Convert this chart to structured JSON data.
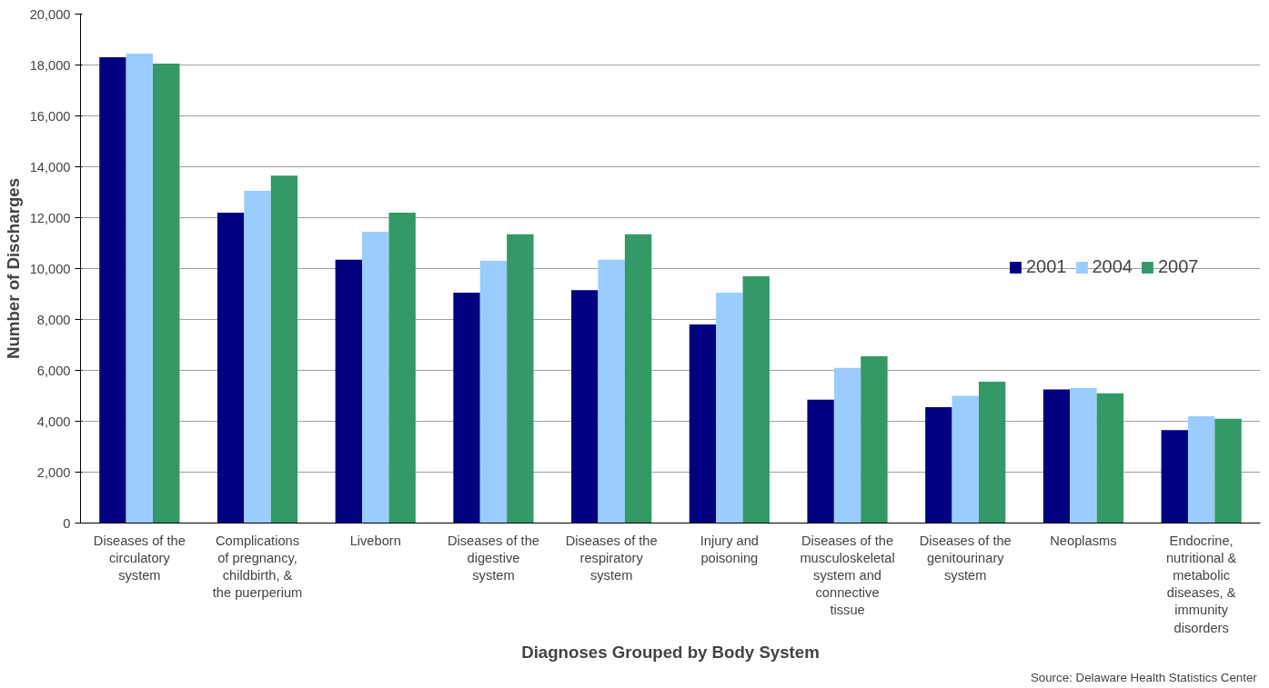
{
  "chart_data": {
    "type": "bar",
    "xlabel": "Diagnoses Grouped by Body System",
    "ylabel": "Number of Discharges",
    "categories": [
      "Diseases of the circulatory system",
      "Complications of pregnancy, childbirth, & the puerperium",
      "Liveborn",
      "Diseases of the digestive system",
      "Diseases of the respiratory system",
      "Injury and poisoning",
      "Diseases of the musculoskeletal system and connective tissue",
      "Diseases of the genitourinary system",
      "Neoplasms",
      "Endocrine, nutritional & metabolic diseases, & immunity disorders"
    ],
    "series": [
      {
        "name": "2001",
        "color": "#000080",
        "values": [
          18300,
          12200,
          10350,
          9050,
          9150,
          7800,
          4850,
          4550,
          5250,
          3650
        ]
      },
      {
        "name": "2004",
        "color": "#99ccff",
        "values": [
          18450,
          13050,
          11450,
          10300,
          10350,
          9050,
          6100,
          5000,
          5300,
          4200
        ]
      },
      {
        "name": "2007",
        "color": "#339966",
        "values": [
          18050,
          13650,
          12200,
          11350,
          11350,
          9700,
          6550,
          5550,
          5100,
          4100
        ]
      }
    ],
    "ylim": [
      0,
      20000
    ],
    "yticks": [
      {
        "value": 0,
        "label": "0"
      },
      {
        "value": 2000,
        "label": "2,000"
      },
      {
        "value": 4000,
        "label": "4,000"
      },
      {
        "value": 6000,
        "label": "6,000"
      },
      {
        "value": 8000,
        "label": "8,000"
      },
      {
        "value": 10000,
        "label": "10,000"
      },
      {
        "value": 12000,
        "label": "12,000"
      },
      {
        "value": 14000,
        "label": "14,000"
      },
      {
        "value": 16000,
        "label": "16,000"
      },
      {
        "value": 18000,
        "label": "18,000"
      },
      {
        "value": 20000,
        "label": "20,000"
      }
    ],
    "grid": "y",
    "legend": "right",
    "annotations": [
      "Source:  Delaware Health Statistics Center"
    ]
  }
}
